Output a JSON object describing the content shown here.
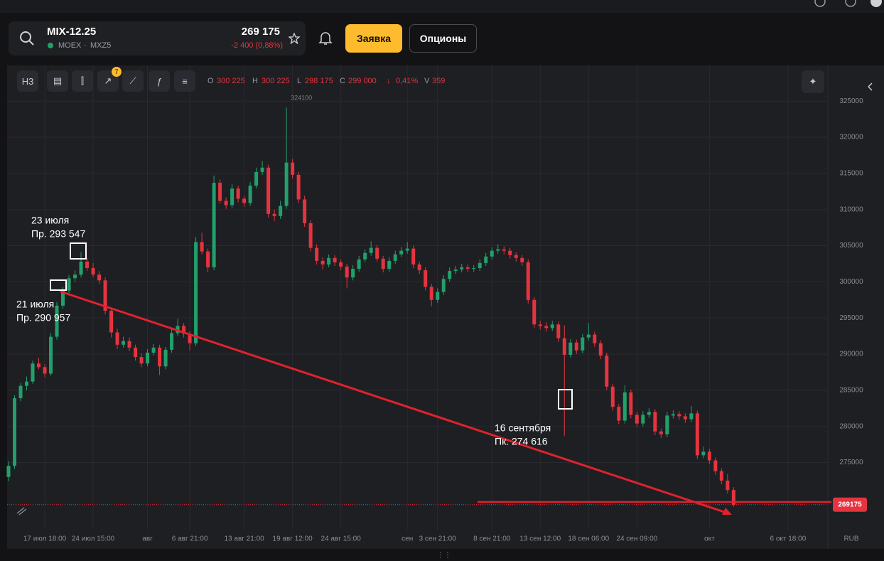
{
  "header": {
    "ticker": "MIX-12.25",
    "exchange": "MOEX",
    "code": "MXZ5",
    "price": "269 175",
    "change": "-2 400 (0,88%)",
    "order_button": "Заявка",
    "options_button": "Опционы"
  },
  "toolbar": {
    "interval": "H3",
    "indicator_count": "7",
    "ohlc": [
      {
        "label": "O",
        "value": "300 225"
      },
      {
        "label": "H",
        "value": "300 225"
      },
      {
        "label": "L",
        "value": "298 175"
      },
      {
        "label": "C",
        "value": "299 000"
      }
    ],
    "direction": "↓",
    "change": "0,41%",
    "volume_label": "V",
    "volume": "359"
  },
  "chart_data": {
    "type": "candlestick",
    "currency": "RUB",
    "up_color": "#22a06b",
    "down_color": "#e5343f",
    "ylim": [
      266000,
      326200
    ],
    "yticks": [
      275000,
      280000,
      285000,
      290000,
      295000,
      300000,
      305000,
      310000,
      315000,
      320000,
      325000
    ],
    "xlim": [
      0,
      135.6
    ],
    "xticks": [
      {
        "value": 6,
        "label": "17 июл 18:00"
      },
      {
        "value": 14,
        "label": "24 июл 15:00"
      },
      {
        "value": 23,
        "label": "авг"
      },
      {
        "value": 30,
        "label": "6 авг 21:00"
      },
      {
        "value": 39,
        "label": "13 авг 21:00"
      },
      {
        "value": 47,
        "label": "19 авг 12:00"
      },
      {
        "value": 55,
        "label": "24 авг 15:00"
      },
      {
        "value": 66,
        "label": "сен"
      },
      {
        "value": 71,
        "label": "3 сен 21:00"
      },
      {
        "value": 80,
        "label": "8 сен 21:00"
      },
      {
        "value": 88,
        "label": "13 сен 12:00"
      },
      {
        "value": 96,
        "label": "18 сен 06:00"
      },
      {
        "value": 104,
        "label": "24 сен 09:00"
      },
      {
        "value": 116,
        "label": "окт"
      },
      {
        "value": 129,
        "label": "6 окт 18:00"
      }
    ],
    "grid": true,
    "max_label": 324100,
    "last_price": 269175,
    "annotations": [
      "23 июля",
      "Пр. 293 547",
      "21 июля",
      "Пр. 290 957",
      "16 сентября",
      "Пк. 274 616"
    ],
    "ohlc": [
      [
        273000,
        275200,
        272400,
        274550
      ],
      [
        274550,
        284300,
        274100,
        283900
      ],
      [
        283900,
        286000,
        283500,
        285600
      ],
      [
        285600,
        286900,
        285000,
        286200
      ],
      [
        286200,
        289100,
        285900,
        288700
      ],
      [
        288700,
        289500,
        287900,
        288200
      ],
      [
        288200,
        288600,
        286800,
        287300
      ],
      [
        287300,
        292900,
        287000,
        292400
      ],
      [
        292400,
        297200,
        292000,
        296700
      ],
      [
        296700,
        299300,
        296300,
        298800
      ],
      [
        298800,
        300900,
        298400,
        300500
      ],
      [
        300500,
        301600,
        300000,
        301000
      ],
      [
        301000,
        304100,
        300600,
        302800
      ],
      [
        302800,
        303300,
        301500,
        301900
      ],
      [
        301900,
        302600,
        300600,
        301000
      ],
      [
        301000,
        301500,
        299700,
        300200
      ],
      [
        300200,
        300600,
        295500,
        296000
      ],
      [
        296000,
        296400,
        292300,
        293000
      ],
      [
        293000,
        293500,
        290700,
        291300
      ],
      [
        291300,
        292400,
        290900,
        291800
      ],
      [
        291800,
        292300,
        290400,
        290900
      ],
      [
        290900,
        291300,
        289100,
        289600
      ],
      [
        289600,
        290100,
        288200,
        288700
      ],
      [
        288700,
        290700,
        288300,
        290200
      ],
      [
        290200,
        291400,
        289800,
        290900
      ],
      [
        290900,
        291300,
        287100,
        288300
      ],
      [
        288300,
        291000,
        287900,
        290600
      ],
      [
        290600,
        293400,
        290200,
        292900
      ],
      [
        292900,
        294900,
        292500,
        293900
      ],
      [
        293900,
        294300,
        292300,
        292800
      ],
      [
        292800,
        293200,
        290500,
        291500
      ],
      [
        291500,
        306200,
        291100,
        305500
      ],
      [
        305500,
        306800,
        303800,
        304200
      ],
      [
        304200,
        304600,
        301300,
        302000
      ],
      [
        302000,
        314700,
        301600,
        313700
      ],
      [
        313700,
        314200,
        310800,
        311200
      ],
      [
        311200,
        311700,
        310100,
        310600
      ],
      [
        310600,
        313500,
        310200,
        312900
      ],
      [
        312900,
        313300,
        311000,
        311500
      ],
      [
        311500,
        311900,
        310400,
        310900
      ],
      [
        310900,
        313800,
        310500,
        313300
      ],
      [
        313300,
        315800,
        312900,
        315200
      ],
      [
        315200,
        316700,
        314800,
        315800
      ],
      [
        315800,
        316200,
        308900,
        309400
      ],
      [
        309400,
        310000,
        308400,
        309100
      ],
      [
        309100,
        311200,
        308700,
        310500
      ],
      [
        310500,
        324100,
        310100,
        316500
      ],
      [
        316500,
        317000,
        314300,
        314800
      ],
      [
        314800,
        315200,
        310900,
        311400
      ],
      [
        311400,
        311900,
        307600,
        308100
      ],
      [
        308100,
        308500,
        304200,
        304700
      ],
      [
        304700,
        305200,
        302400,
        302900
      ],
      [
        302900,
        303400,
        301700,
        302400
      ],
      [
        302400,
        303800,
        302000,
        303300
      ],
      [
        303300,
        303700,
        302200,
        302700
      ],
      [
        302700,
        303100,
        301600,
        302100
      ],
      [
        302100,
        302500,
        299100,
        300600
      ],
      [
        300600,
        302300,
        300200,
        301800
      ],
      [
        301800,
        303600,
        301400,
        303100
      ],
      [
        303100,
        304500,
        302700,
        304000
      ],
      [
        304000,
        305600,
        303600,
        304700
      ],
      [
        304700,
        305100,
        302800,
        303200
      ],
      [
        303200,
        303600,
        301300,
        301800
      ],
      [
        301800,
        303400,
        301400,
        302900
      ],
      [
        302900,
        304300,
        302500,
        303800
      ],
      [
        303800,
        304800,
        303400,
        304300
      ],
      [
        304300,
        305500,
        303900,
        304600
      ],
      [
        304600,
        305000,
        301900,
        302400
      ],
      [
        302400,
        302800,
        301100,
        301600
      ],
      [
        301600,
        302000,
        298800,
        299300
      ],
      [
        299300,
        299700,
        296600,
        297500
      ],
      [
        297500,
        299100,
        297100,
        298600
      ],
      [
        298600,
        300900,
        298200,
        300400
      ],
      [
        300400,
        302000,
        300000,
        301500
      ],
      [
        301500,
        302200,
        301100,
        301700
      ],
      [
        301700,
        302500,
        301300,
        302000
      ],
      [
        302000,
        302400,
        301300,
        301800
      ],
      [
        301800,
        302300,
        301400,
        301900
      ],
      [
        301900,
        303100,
        301500,
        302600
      ],
      [
        302600,
        304000,
        302200,
        303500
      ],
      [
        303500,
        304800,
        303100,
        304300
      ],
      [
        304300,
        305200,
        303900,
        304500
      ],
      [
        304500,
        304900,
        303800,
        304300
      ],
      [
        304300,
        304700,
        303200,
        303700
      ],
      [
        303700,
        304100,
        302800,
        303300
      ],
      [
        303300,
        303700,
        302200,
        302700
      ],
      [
        302700,
        303100,
        297000,
        297500
      ],
      [
        297500,
        297900,
        293600,
        294100
      ],
      [
        294100,
        294600,
        293400,
        293900
      ],
      [
        293900,
        294400,
        293100,
        293600
      ],
      [
        293600,
        294600,
        293200,
        294100
      ],
      [
        294100,
        294500,
        291700,
        292200
      ],
      [
        292200,
        294000,
        278700,
        289900
      ],
      [
        289900,
        292100,
        289500,
        291600
      ],
      [
        291600,
        292000,
        290000,
        290500
      ],
      [
        290500,
        292800,
        290100,
        292300
      ],
      [
        292300,
        294300,
        291900,
        292700
      ],
      [
        292700,
        293100,
        291000,
        291500
      ],
      [
        291500,
        291900,
        289300,
        289800
      ],
      [
        289800,
        290200,
        285000,
        285500
      ],
      [
        285500,
        285900,
        282200,
        282700
      ],
      [
        282700,
        283100,
        280300,
        280800
      ],
      [
        280800,
        285700,
        280400,
        284700
      ],
      [
        284700,
        285100,
        281100,
        281600
      ],
      [
        281600,
        282000,
        279900,
        280400
      ],
      [
        280400,
        282100,
        280000,
        281600
      ],
      [
        281600,
        282500,
        281200,
        282000
      ],
      [
        282000,
        282400,
        278800,
        279300
      ],
      [
        279300,
        279700,
        278400,
        278900
      ],
      [
        278900,
        282000,
        278500,
        281500
      ],
      [
        281500,
        282200,
        281100,
        281700
      ],
      [
        281700,
        282100,
        280900,
        281400
      ],
      [
        281400,
        281800,
        280500,
        281000
      ],
      [
        281000,
        282800,
        280600,
        281800
      ],
      [
        281800,
        282200,
        275500,
        276000
      ],
      [
        276000,
        277200,
        275600,
        276500
      ],
      [
        276500,
        276900,
        274800,
        275300
      ],
      [
        275300,
        275700,
        273300,
        273800
      ],
      [
        273800,
        274200,
        272000,
        272500
      ],
      [
        272500,
        273400,
        270700,
        271200
      ],
      [
        271200,
        271600,
        268900,
        269175
      ]
    ]
  }
}
